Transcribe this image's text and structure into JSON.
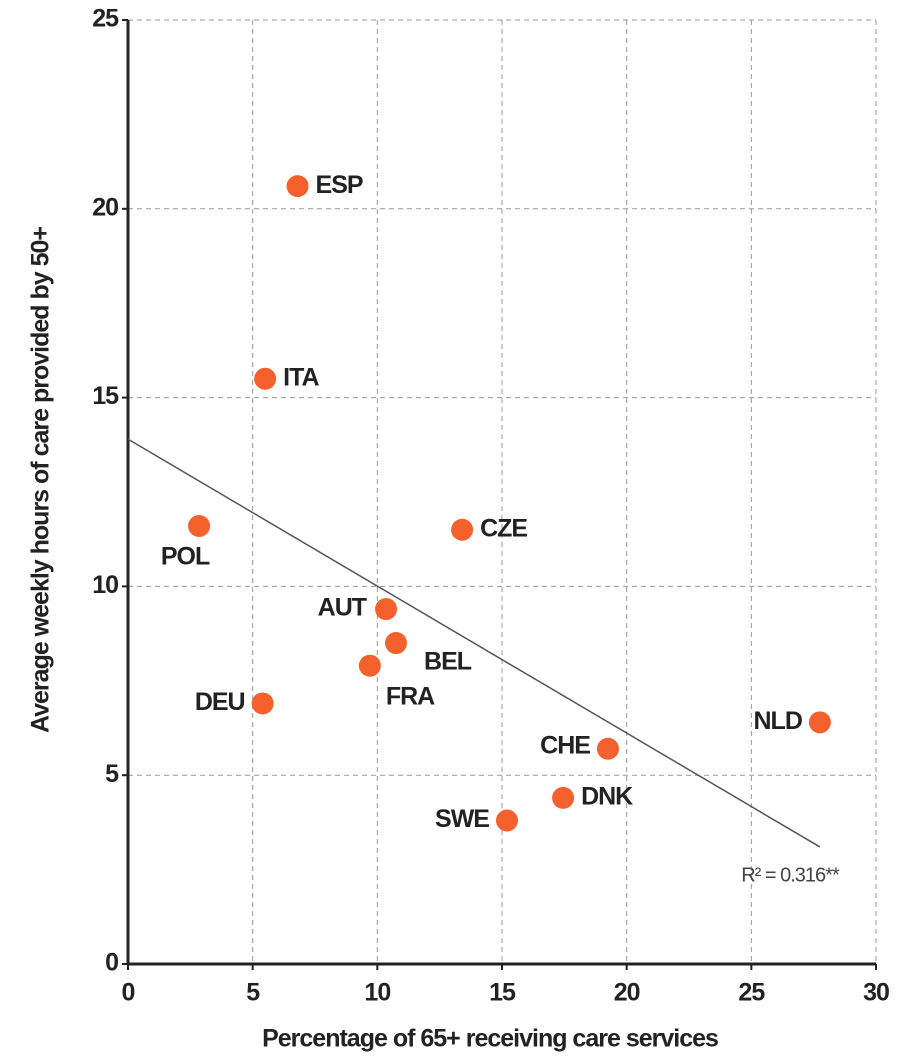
{
  "chart_data": {
    "type": "scatter",
    "x_label": "Percentage of 65+ receiving care services",
    "y_label": "Average weekly hours of care provided by 50+",
    "labels": [
      "ESP",
      "ITA",
      "POL",
      "CZE",
      "AUT",
      "BEL",
      "FRA",
      "DEU",
      "NLD",
      "CHE",
      "DNK",
      "SWE"
    ],
    "x": [
      6.8,
      5.5,
      2.85,
      13.4,
      10.35,
      10.75,
      9.7,
      5.4,
      27.75,
      19.25,
      17.45,
      15.2
    ],
    "y": [
      20.6,
      15.5,
      11.6,
      11.5,
      9.4,
      8.5,
      7.9,
      6.9,
      6.4,
      5.7,
      4.4,
      3.8
    ],
    "color": "#f4612c",
    "trendline": {
      "x": [
        0,
        27.75
      ],
      "y": [
        13.9,
        3.1
      ],
      "color": "#555"
    },
    "annotation": "R² = 0.316**",
    "xlim": [
      0,
      30
    ],
    "xticks": [
      0,
      5,
      10,
      15,
      20,
      25,
      30
    ],
    "ylim": [
      0,
      25
    ],
    "yticks": [
      0,
      5,
      10,
      15,
      20,
      25
    ],
    "grid": true
  }
}
